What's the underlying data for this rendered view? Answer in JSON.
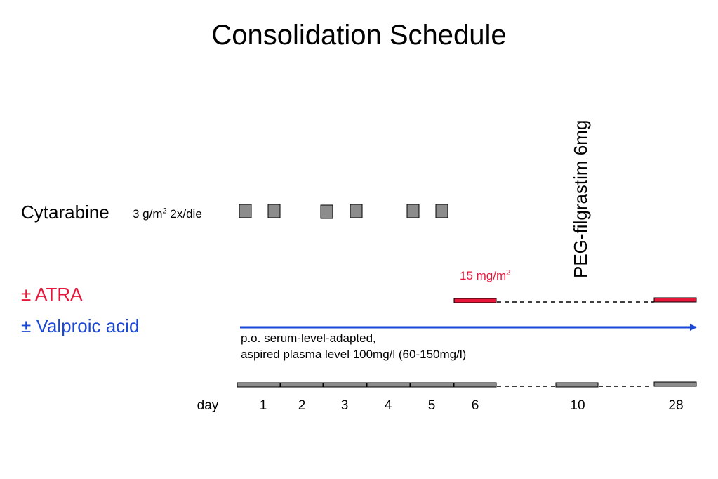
{
  "title": "Consolidation Schedule",
  "cytarabine": {
    "label": "Cytarabine",
    "dose_prefix": "3 g/m",
    "dose_sup": "2",
    "dose_suffix": " 2x/die"
  },
  "atra": {
    "label": "± ATRA",
    "dose_prefix": "15 mg/m",
    "dose_sup": "2"
  },
  "valproic_acid": {
    "label": "± Valproic acid",
    "note_line1": "p.o. serum-level-adapted,",
    "note_line2": "aspired plasma level 100mg/l (60-150mg/l)"
  },
  "peg_filgrastim": {
    "label": "PEG-filgrastim 6mg"
  },
  "timeline": {
    "axis_label": "day",
    "day_labels": [
      "1",
      "2",
      "3",
      "4",
      "5",
      "6",
      "10",
      "28"
    ]
  },
  "colors": {
    "atra": "#e8173a",
    "valproic_acid": "#1a47d6",
    "box_fill": "#8c8c8c",
    "text": "#000000"
  }
}
